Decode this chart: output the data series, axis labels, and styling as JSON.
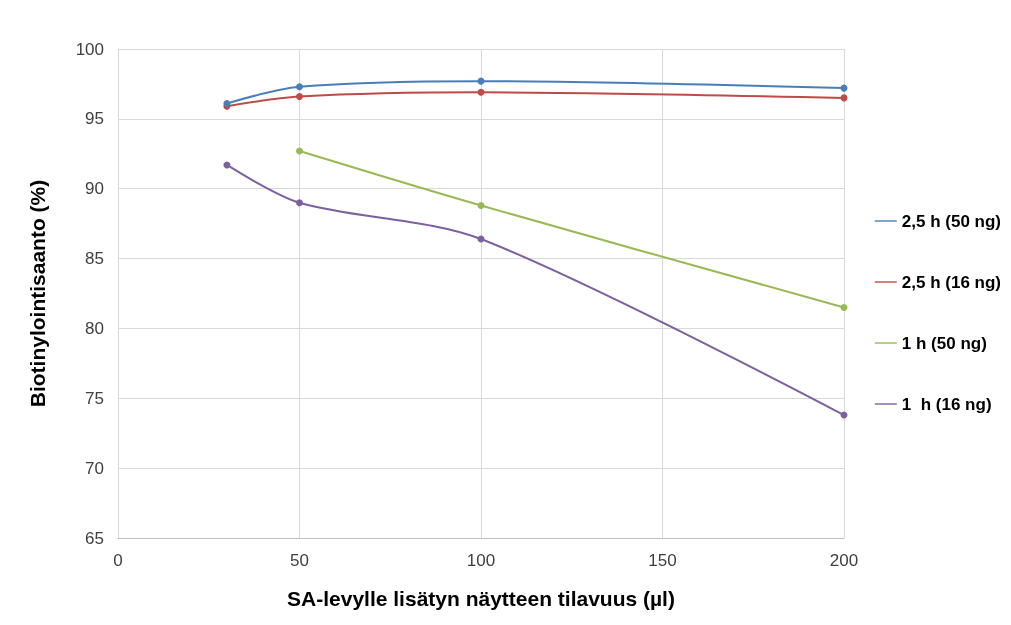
{
  "chart_data": {
    "type": "line",
    "xlabel": "SA-levylle lisätyn näytteen tilavuus (µl)",
    "ylabel": "Biotinylointisaanto (%)",
    "xlim": [
      0,
      200
    ],
    "xticks": [
      0,
      50,
      100,
      150,
      200
    ],
    "ylim": [
      65,
      100
    ],
    "yticks": [
      65,
      70,
      75,
      80,
      85,
      90,
      95,
      100
    ],
    "grid": true,
    "legend": "right",
    "marker": "circle",
    "line_style": "solid",
    "series": [
      {
        "name": "2,5 h (50 ng)",
        "color": "#4a7ebb",
        "x": [
          30,
          50,
          100,
          200
        ],
        "values": [
          96.1,
          97.3,
          97.7,
          97.2
        ]
      },
      {
        "name": "2,5 h (16 ng)",
        "color": "#be4b48",
        "x": [
          30,
          50,
          100,
          200
        ],
        "values": [
          95.9,
          96.6,
          96.9,
          96.5
        ]
      },
      {
        "name": "1 h (50 ng)",
        "color": "#98b954",
        "x": [
          50,
          100,
          200
        ],
        "values": [
          92.7,
          88.8,
          81.5
        ]
      },
      {
        "name": "1  h (16 ng)",
        "color": "#7d60a0",
        "x": [
          30,
          50,
          100,
          200
        ],
        "values": [
          91.7,
          89.0,
          86.4,
          73.8
        ]
      }
    ]
  }
}
